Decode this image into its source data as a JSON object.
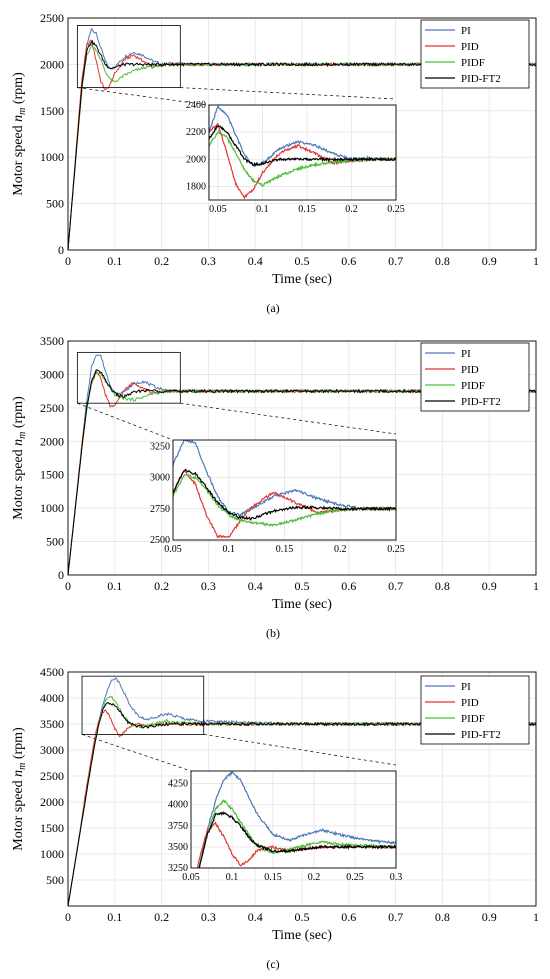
{
  "chart_data": [
    {
      "type": "line",
      "caption": "(a)",
      "xlabel": "Time (sec)",
      "ylabel": "Motor speed n_m (rpm)",
      "xlim": [
        0,
        1
      ],
      "ylim": [
        0,
        2500
      ],
      "xticks": [
        "0",
        "0.1",
        "0.2",
        "0.3",
        "0.4",
        "0.5",
        "0.6",
        "0.7",
        "0.8",
        "0.9",
        "1"
      ],
      "yticks": [
        "0",
        "500",
        "1000",
        "1500",
        "2000",
        "2500"
      ],
      "grid": true,
      "legend_position": "top-right",
      "setpoint": 2000,
      "series": [
        {
          "name": "PI",
          "color": "#4a7ab8",
          "x": [
            0,
            0.01,
            0.02,
            0.03,
            0.04,
            0.05,
            0.06,
            0.07,
            0.08,
            0.09,
            0.1,
            0.12,
            0.14,
            0.16,
            0.18,
            0.2,
            0.22,
            0.25,
            0.3,
            0.4,
            0.5,
            0.6,
            0.7,
            0.8,
            0.9,
            1.0
          ],
          "y": [
            0,
            600,
            1200,
            1750,
            2200,
            2390,
            2330,
            2180,
            2030,
            1950,
            1970,
            2080,
            2130,
            2100,
            2040,
            2000,
            2010,
            2000,
            2000,
            2000,
            2000,
            2000,
            2000,
            2000,
            2000,
            2000
          ]
        },
        {
          "name": "PID",
          "color": "#e3342f",
          "x": [
            0,
            0.01,
            0.02,
            0.03,
            0.04,
            0.05,
            0.06,
            0.07,
            0.08,
            0.09,
            0.1,
            0.12,
            0.14,
            0.16,
            0.18,
            0.2,
            0.22,
            0.25,
            0.3,
            0.4,
            0.5,
            0.6,
            0.7,
            0.8,
            0.9,
            1.0
          ],
          "y": [
            0,
            620,
            1250,
            1850,
            2200,
            2260,
            2050,
            1820,
            1720,
            1780,
            1900,
            2050,
            2100,
            2040,
            1970,
            1990,
            2000,
            2000,
            2000,
            2000,
            2000,
            2000,
            2000,
            2000,
            2000,
            2000
          ]
        },
        {
          "name": "PIDF",
          "color": "#4cbd3a",
          "x": [
            0,
            0.01,
            0.02,
            0.03,
            0.04,
            0.05,
            0.06,
            0.07,
            0.08,
            0.09,
            0.1,
            0.12,
            0.14,
            0.16,
            0.18,
            0.2,
            0.22,
            0.25,
            0.3,
            0.4,
            0.5,
            0.6,
            0.7,
            0.8,
            0.9,
            1.0
          ],
          "y": [
            0,
            590,
            1180,
            1730,
            2100,
            2200,
            2160,
            2050,
            1920,
            1840,
            1810,
            1880,
            1930,
            1960,
            1980,
            1990,
            2000,
            2000,
            2000,
            2000,
            2000,
            2000,
            2000,
            2000,
            2000,
            2000
          ]
        },
        {
          "name": "PID-FT2",
          "color": "#000000",
          "x": [
            0,
            0.01,
            0.02,
            0.03,
            0.04,
            0.05,
            0.06,
            0.07,
            0.08,
            0.09,
            0.1,
            0.12,
            0.14,
            0.16,
            0.18,
            0.2,
            0.22,
            0.25,
            0.3,
            0.4,
            0.5,
            0.6,
            0.7,
            0.8,
            0.9,
            1.0
          ],
          "y": [
            0,
            600,
            1200,
            1780,
            2150,
            2250,
            2200,
            2100,
            2000,
            1960,
            1970,
            2000,
            2000,
            2000,
            2000,
            2000,
            2000,
            2000,
            2000,
            2000,
            2000,
            2000,
            2000,
            2000,
            2000,
            2000
          ]
        }
      ],
      "inset": {
        "xlim": [
          0.04,
          0.25
        ],
        "ylim": [
          1700,
          2400
        ],
        "xticks": [
          "0.05",
          "0.1",
          "0.15",
          "0.2",
          "0.25"
        ],
        "yticks": [
          "1800",
          "2000",
          "2200",
          "2400"
        ],
        "zoom_box_x": [
          0.02,
          0.24
        ],
        "zoom_box_y": [
          1750,
          2420
        ]
      }
    },
    {
      "type": "line",
      "caption": "(b)",
      "xlabel": "Time (sec)",
      "ylabel": "Motor speed n_m (rpm)",
      "xlim": [
        0,
        1
      ],
      "ylim": [
        0,
        3500
      ],
      "xticks": [
        "0",
        "0.1",
        "0.2",
        "0.3",
        "0.4",
        "0.5",
        "0.6",
        "0.7",
        "0.8",
        "0.9",
        "1"
      ],
      "yticks": [
        "0",
        "500",
        "1000",
        "1500",
        "2000",
        "2500",
        "3000",
        "3500"
      ],
      "grid": true,
      "legend_position": "top-right",
      "setpoint": 2750,
      "series": [
        {
          "name": "PI",
          "color": "#4a7ab8",
          "x": [
            0,
            0.01,
            0.02,
            0.03,
            0.04,
            0.05,
            0.06,
            0.07,
            0.08,
            0.09,
            0.1,
            0.11,
            0.12,
            0.14,
            0.16,
            0.18,
            0.2,
            0.22,
            0.25,
            0.3,
            0.4,
            0.5,
            0.6,
            0.7,
            0.8,
            0.9,
            1.0
          ],
          "y": [
            0,
            650,
            1300,
            1950,
            2600,
            3100,
            3300,
            3280,
            3050,
            2850,
            2720,
            2700,
            2750,
            2850,
            2900,
            2830,
            2780,
            2750,
            2750,
            2750,
            2750,
            2750,
            2750,
            2750,
            2750,
            2750,
            2750
          ]
        },
        {
          "name": "PID",
          "color": "#e3342f",
          "x": [
            0,
            0.01,
            0.02,
            0.03,
            0.04,
            0.05,
            0.06,
            0.07,
            0.08,
            0.09,
            0.1,
            0.11,
            0.12,
            0.14,
            0.16,
            0.18,
            0.2,
            0.22,
            0.25,
            0.3,
            0.4,
            0.5,
            0.6,
            0.7,
            0.8,
            0.9,
            1.0
          ],
          "y": [
            0,
            660,
            1320,
            1980,
            2500,
            2880,
            3050,
            2950,
            2700,
            2530,
            2520,
            2650,
            2760,
            2880,
            2800,
            2720,
            2740,
            2750,
            2750,
            2750,
            2750,
            2750,
            2750,
            2750,
            2750,
            2750,
            2750
          ]
        },
        {
          "name": "PIDF",
          "color": "#4cbd3a",
          "x": [
            0,
            0.01,
            0.02,
            0.03,
            0.04,
            0.05,
            0.06,
            0.07,
            0.08,
            0.09,
            0.1,
            0.11,
            0.12,
            0.14,
            0.16,
            0.18,
            0.2,
            0.22,
            0.25,
            0.3,
            0.4,
            0.5,
            0.6,
            0.7,
            0.8,
            0.9,
            1.0
          ],
          "y": [
            0,
            640,
            1280,
            1920,
            2480,
            2850,
            3020,
            3000,
            2900,
            2780,
            2700,
            2660,
            2640,
            2620,
            2660,
            2710,
            2740,
            2750,
            2750,
            2750,
            2750,
            2750,
            2750,
            2750,
            2750,
            2750,
            2750
          ]
        },
        {
          "name": "PID-FT2",
          "color": "#000000",
          "x": [
            0,
            0.01,
            0.02,
            0.03,
            0.04,
            0.05,
            0.06,
            0.07,
            0.08,
            0.09,
            0.1,
            0.11,
            0.12,
            0.14,
            0.16,
            0.18,
            0.2,
            0.22,
            0.25,
            0.3,
            0.4,
            0.5,
            0.6,
            0.7,
            0.8,
            0.9,
            1.0
          ],
          "y": [
            0,
            640,
            1280,
            1920,
            2500,
            2880,
            3060,
            3030,
            2920,
            2800,
            2720,
            2680,
            2670,
            2730,
            2760,
            2760,
            2750,
            2750,
            2750,
            2750,
            2750,
            2750,
            2750,
            2750,
            2750,
            2750,
            2750
          ]
        }
      ],
      "inset": {
        "xlim": [
          0.05,
          0.25
        ],
        "ylim": [
          2500,
          3300
        ],
        "xticks": [
          "0.05",
          "0.1",
          "0.15",
          "0.2",
          "0.25"
        ],
        "yticks": [
          "2500",
          "2750",
          "3000",
          "3250"
        ],
        "zoom_box_x": [
          0.02,
          0.24
        ],
        "zoom_box_y": [
          2570,
          3330
        ]
      }
    },
    {
      "type": "line",
      "caption": "(c)",
      "xlabel": "Time (sec)",
      "ylabel": "Motor speed n_m (rpm)",
      "xlim": [
        0,
        1
      ],
      "ylim": [
        0,
        4500
      ],
      "xticks": [
        "0",
        "0.1",
        "0.2",
        "0.3",
        "0.4",
        "0.5",
        "0.6",
        "0.7",
        "0.8",
        "0.9",
        "1"
      ],
      "yticks": [
        "500",
        "1000",
        "1500",
        "2000",
        "2500",
        "3000",
        "3500",
        "4000",
        "4500"
      ],
      "grid": true,
      "legend_position": "top-right",
      "setpoint": 3500,
      "series": [
        {
          "name": "PI",
          "color": "#4a7ab8",
          "x": [
            0,
            0.01,
            0.02,
            0.03,
            0.04,
            0.05,
            0.06,
            0.07,
            0.08,
            0.09,
            0.1,
            0.11,
            0.12,
            0.13,
            0.15,
            0.17,
            0.19,
            0.21,
            0.23,
            0.25,
            0.28,
            0.3,
            0.4,
            0.5,
            0.6,
            0.7,
            0.8,
            0.9,
            1.0
          ],
          "y": [
            0,
            550,
            1100,
            1650,
            2200,
            2750,
            3250,
            3700,
            4050,
            4300,
            4380,
            4300,
            4100,
            3900,
            3650,
            3580,
            3650,
            3700,
            3650,
            3600,
            3560,
            3550,
            3520,
            3500,
            3500,
            3500,
            3500,
            3500,
            3500
          ]
        },
        {
          "name": "PID",
          "color": "#e3342f",
          "x": [
            0,
            0.01,
            0.02,
            0.03,
            0.04,
            0.05,
            0.06,
            0.07,
            0.08,
            0.09,
            0.1,
            0.11,
            0.12,
            0.13,
            0.15,
            0.17,
            0.19,
            0.21,
            0.23,
            0.25,
            0.28,
            0.3,
            0.4,
            0.5,
            0.6,
            0.7,
            0.8,
            0.9,
            1.0
          ],
          "y": [
            0,
            560,
            1120,
            1700,
            2300,
            2850,
            3350,
            3700,
            3780,
            3620,
            3420,
            3280,
            3330,
            3450,
            3500,
            3450,
            3480,
            3500,
            3500,
            3500,
            3500,
            3500,
            3500,
            3500,
            3500,
            3500,
            3500,
            3500,
            3500
          ]
        },
        {
          "name": "PIDF",
          "color": "#4cbd3a",
          "x": [
            0,
            0.01,
            0.02,
            0.03,
            0.04,
            0.05,
            0.06,
            0.07,
            0.08,
            0.09,
            0.1,
            0.11,
            0.12,
            0.13,
            0.15,
            0.17,
            0.19,
            0.21,
            0.23,
            0.25,
            0.28,
            0.3,
            0.4,
            0.5,
            0.6,
            0.7,
            0.8,
            0.9,
            1.0
          ],
          "y": [
            0,
            550,
            1100,
            1650,
            2200,
            2750,
            3250,
            3650,
            3950,
            4050,
            3950,
            3800,
            3650,
            3520,
            3430,
            3470,
            3520,
            3560,
            3530,
            3520,
            3510,
            3500,
            3500,
            3500,
            3500,
            3500,
            3500,
            3500,
            3500
          ]
        },
        {
          "name": "PID-FT2",
          "color": "#000000",
          "x": [
            0,
            0.01,
            0.02,
            0.03,
            0.04,
            0.05,
            0.06,
            0.07,
            0.08,
            0.09,
            0.1,
            0.11,
            0.12,
            0.13,
            0.15,
            0.17,
            0.19,
            0.21,
            0.23,
            0.25,
            0.28,
            0.3,
            0.4,
            0.5,
            0.6,
            0.7,
            0.8,
            0.9,
            1.0
          ],
          "y": [
            0,
            550,
            1100,
            1650,
            2200,
            2750,
            3250,
            3650,
            3880,
            3900,
            3850,
            3750,
            3620,
            3520,
            3450,
            3450,
            3480,
            3500,
            3500,
            3500,
            3500,
            3500,
            3500,
            3500,
            3500,
            3500,
            3500,
            3500,
            3500
          ]
        }
      ],
      "inset": {
        "xlim": [
          0.05,
          0.3
        ],
        "ylim": [
          3250,
          4400
        ],
        "xticks": [
          "0.05",
          "0.1",
          "0.15",
          "0.2",
          "0.25",
          "0.3"
        ],
        "yticks": [
          "3250",
          "3500",
          "3750",
          "4000",
          "4250"
        ],
        "zoom_box_x": [
          0.03,
          0.29
        ],
        "zoom_box_y": [
          3300,
          4420
        ]
      }
    }
  ]
}
